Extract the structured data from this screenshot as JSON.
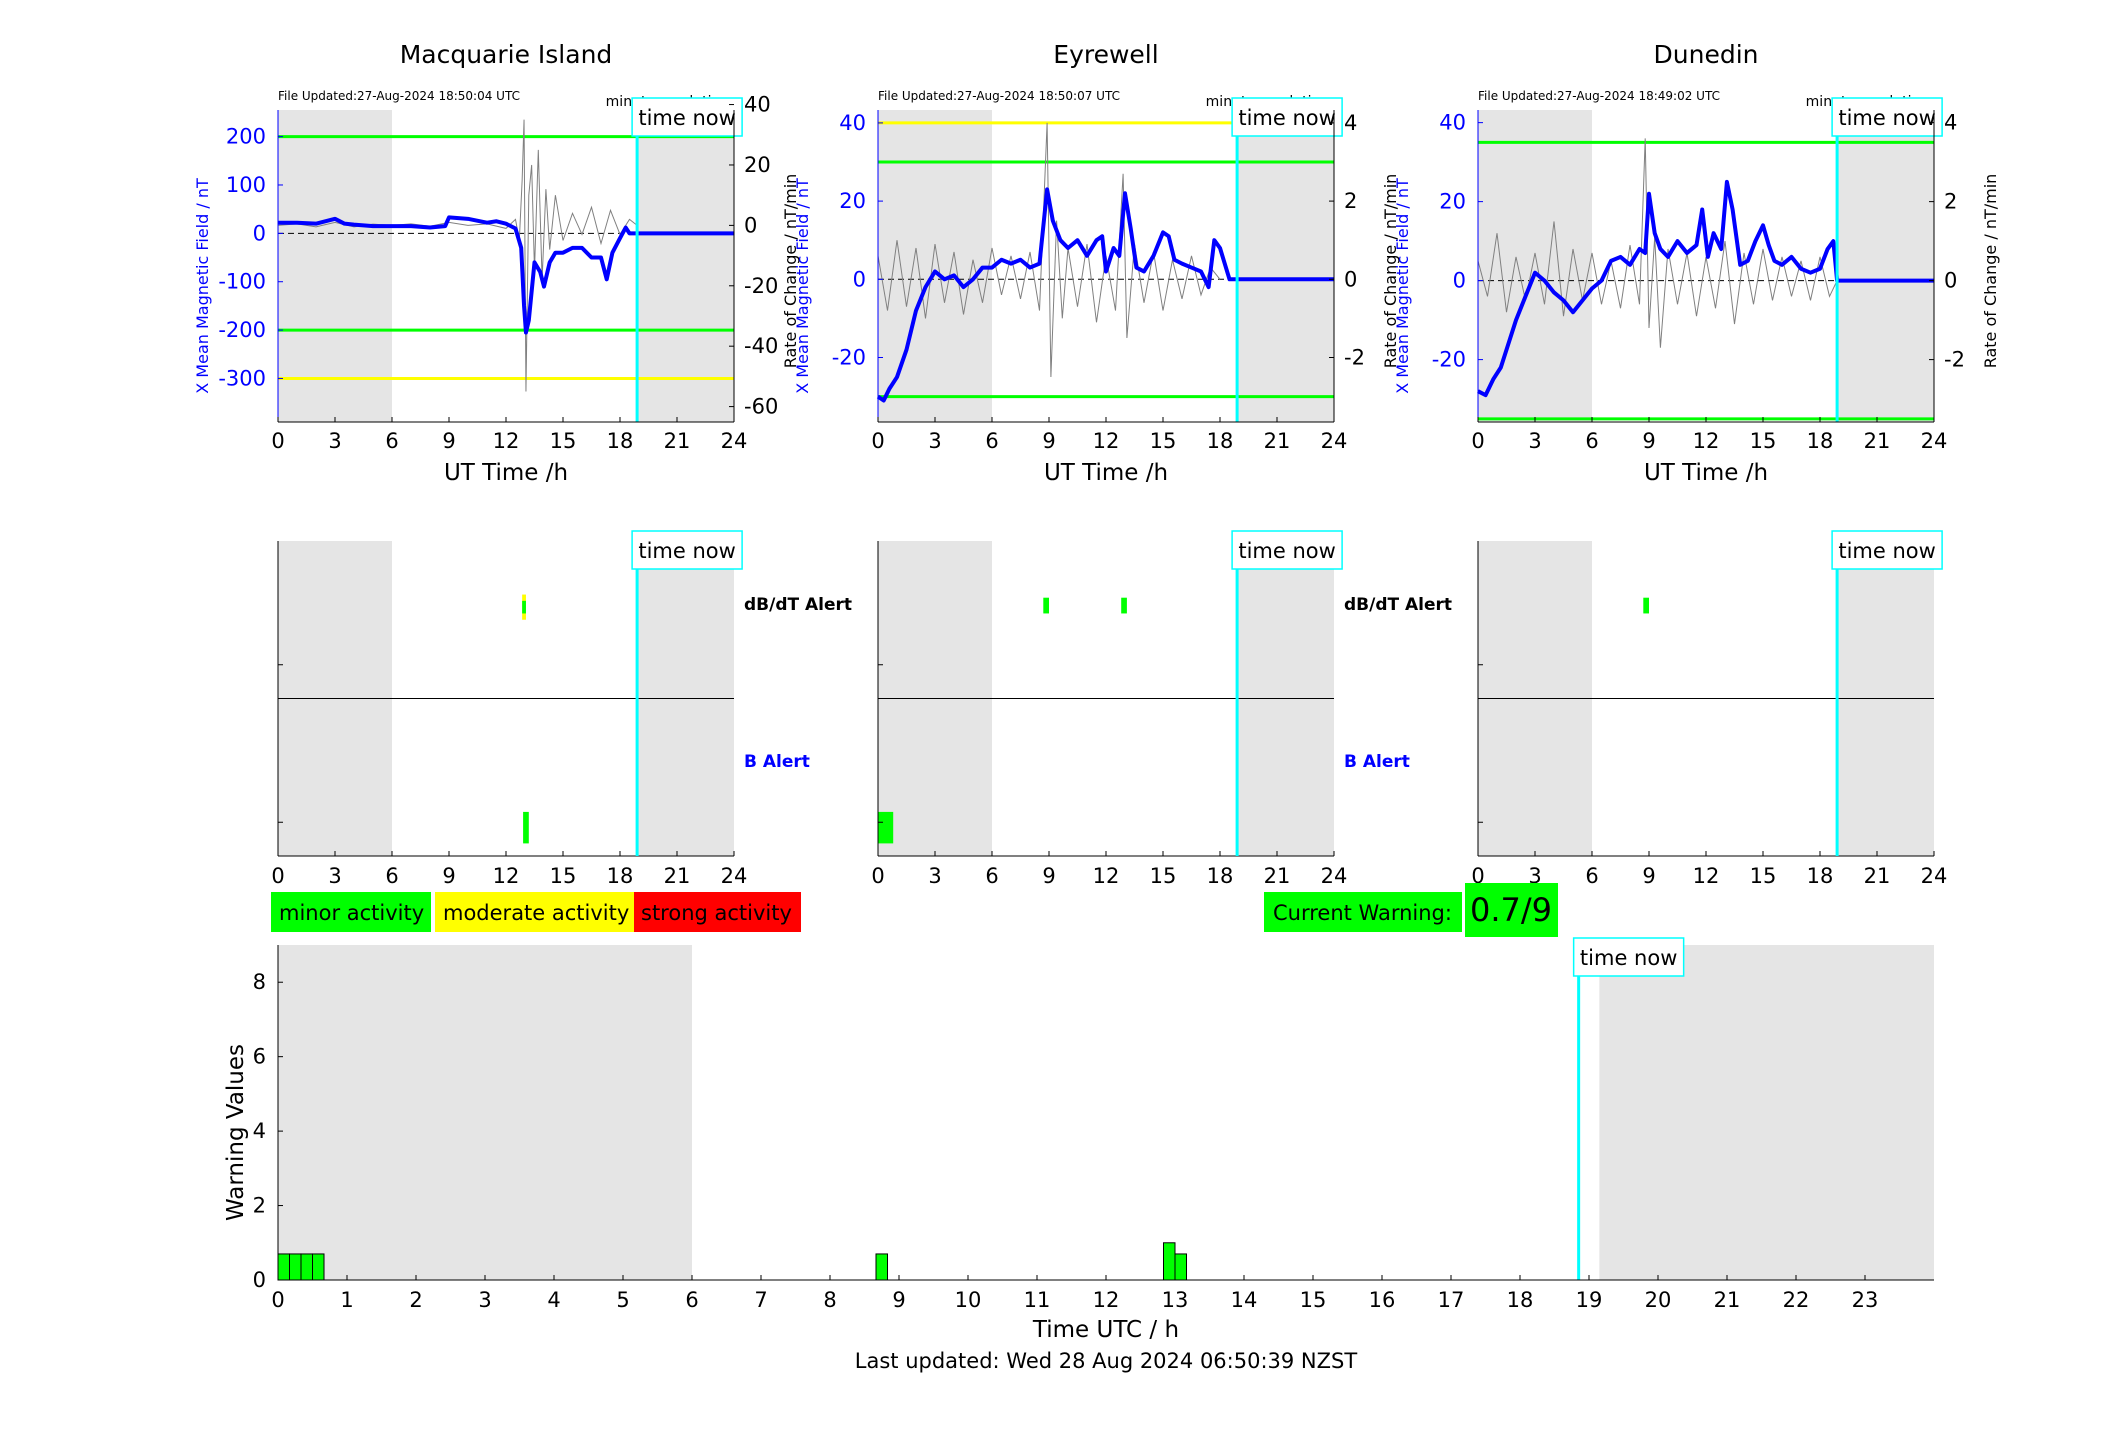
{
  "colors": {
    "field": "#0000ff",
    "rate": "#808080",
    "green": "#00ff00",
    "yellow": "#ffff00",
    "red": "#ff0000",
    "cyan": "#00ffff",
    "night": "#e5e5e5"
  },
  "labels": {
    "time_now": "time now",
    "xlabel_top": "UT Time /h",
    "ylabel_left": "X Mean Magnetic Field / nT",
    "ylabel_right": "Rate of Change / nT/min",
    "minute_resolution": "minute resolution",
    "dbdt_alert": "dB/dT Alert",
    "b_alert": "B Alert"
  },
  "legend": {
    "minor": "minor activity",
    "moderate": "moderate activity",
    "strong": "strong activity"
  },
  "current_warning": {
    "label": "Current Warning:",
    "value": "0.7/9"
  },
  "footer": "Last updated: Wed 28 Aug 2024 06:50:39 NZST",
  "chart_data": [
    {
      "type": "line",
      "title": "Macquarie Island",
      "file_updated": "File Updated:27-Aug-2024 18:50:04 UTC",
      "xlabel": "UT Time /h",
      "ylabel": "X Mean Magnetic Field / nT",
      "ylabel_right": "Rate of Change / nT/min",
      "xlim": [
        0,
        24
      ],
      "xticks": [
        0,
        3,
        6,
        9,
        12,
        15,
        18,
        21,
        24
      ],
      "ylim": [
        -390,
        255
      ],
      "yticks": [
        200,
        100,
        0,
        -100,
        -200,
        -300
      ],
      "ylim_right": [
        -65.1,
        38.2
      ],
      "yticks_right": [
        40,
        20,
        0,
        -20,
        -40,
        -60
      ],
      "night_shading": [
        [
          0,
          6
        ],
        [
          18.9,
          24
        ]
      ],
      "time_now": 18.9,
      "thresholds": [
        {
          "value": 200,
          "color": "green"
        },
        {
          "value": -200,
          "color": "green"
        },
        {
          "value": -300,
          "color": "yellow"
        }
      ],
      "series": [
        {
          "role": "field",
          "x": [
            0,
            1,
            2,
            3,
            3.5,
            4,
            5,
            6,
            7,
            8,
            8.8,
            9,
            10,
            11,
            11.5,
            12,
            12.5,
            12.8,
            12.95,
            13.05,
            13.2,
            13.5,
            13.8,
            14,
            14.3,
            14.6,
            15,
            15.5,
            16,
            16.5,
            17,
            17.3,
            17.6,
            18,
            18.3,
            18.5,
            18.9,
            24
          ],
          "y": [
            22,
            22,
            20,
            30,
            20,
            18,
            15,
            15,
            15,
            12,
            15,
            33,
            30,
            22,
            25,
            20,
            10,
            -30,
            -150,
            -205,
            -180,
            -60,
            -80,
            -110,
            -60,
            -40,
            -40,
            -30,
            -30,
            -50,
            -50,
            -95,
            -40,
            -10,
            12,
            0,
            0,
            0
          ]
        },
        {
          "role": "rate",
          "x": [
            0,
            1,
            2,
            3,
            4,
            5,
            6,
            7,
            8,
            9,
            10,
            11,
            12,
            12.5,
            12.7,
            12.85,
            12.95,
            13.05,
            13.2,
            13.35,
            13.5,
            13.7,
            13.9,
            14.1,
            14.3,
            14.6,
            15,
            15.5,
            16,
            16.5,
            17,
            17.5,
            18,
            18.5,
            18.9
          ],
          "y": [
            0,
            0.5,
            -0.5,
            1,
            -0.5,
            0.4,
            0,
            0.5,
            -0.3,
            1,
            0,
            0.5,
            -1,
            2,
            -5,
            15,
            35,
            -55,
            10,
            20,
            -15,
            25,
            -18,
            12,
            -8,
            10,
            -5,
            4,
            -3,
            6,
            -6,
            5,
            -3,
            2,
            0
          ]
        }
      ],
      "alerts": {
        "dbdt": [
          {
            "start": 12.85,
            "end": 13.05,
            "color": "yellow",
            "lo": 0.5,
            "hi": 0.66
          },
          {
            "start": 12.85,
            "end": 13.05,
            "color": "green",
            "lo": 0.54,
            "hi": 0.62
          }
        ],
        "b": [
          {
            "start": 12.9,
            "end": 13.2,
            "color": "green",
            "lo": 0.04,
            "hi": 0.14
          }
        ]
      }
    },
    {
      "type": "line",
      "title": "Eyrewell",
      "file_updated": "File Updated:27-Aug-2024 18:50:07 UTC",
      "xlabel": "UT Time /h",
      "ylabel": "X Mean Magnetic Field / nT",
      "ylabel_right": "Rate of Change / nT/min",
      "xlim": [
        0,
        24
      ],
      "xticks": [
        0,
        3,
        6,
        9,
        12,
        15,
        18,
        21,
        24
      ],
      "ylim": [
        -36.5,
        43.3
      ],
      "yticks": [
        40,
        20,
        0,
        -20
      ],
      "ylim_right": [
        -3.65,
        4.33
      ],
      "yticks_right": [
        4,
        2,
        0,
        -2
      ],
      "night_shading": [
        [
          0,
          6
        ],
        [
          18.9,
          24
        ]
      ],
      "time_now": 18.9,
      "thresholds": [
        {
          "value": 40,
          "color": "yellow"
        },
        {
          "value": 30,
          "color": "green"
        },
        {
          "value": -30,
          "color": "green"
        }
      ],
      "series": [
        {
          "role": "field",
          "x": [
            0,
            0.3,
            0.6,
            1,
            1.5,
            2,
            2.5,
            3,
            3.5,
            4,
            4.5,
            5,
            5.5,
            6,
            6.5,
            7,
            7.5,
            8,
            8.5,
            8.9,
            9.2,
            9.6,
            10,
            10.5,
            11,
            11.5,
            11.8,
            12,
            12.4,
            12.7,
            13,
            13.3,
            13.6,
            14,
            14.5,
            15,
            15.3,
            15.6,
            16,
            16.5,
            17,
            17.4,
            17.7,
            18,
            18.5,
            18.9,
            24
          ],
          "y": [
            -30,
            -31,
            -28,
            -25,
            -18,
            -8,
            -2,
            2,
            0,
            1,
            -2,
            0,
            3,
            3,
            5,
            4,
            5,
            3,
            4,
            23,
            15,
            10,
            8,
            10,
            6,
            10,
            11,
            2,
            8,
            6,
            22,
            13,
            3,
            2,
            6,
            12,
            11,
            5,
            4,
            3,
            2,
            -2,
            10,
            8,
            0,
            0,
            0
          ]
        },
        {
          "role": "rate",
          "x": [
            0,
            0.5,
            1,
            1.5,
            2,
            2.5,
            3,
            3.5,
            4,
            4.5,
            5,
            5.5,
            6,
            6.5,
            7,
            7.5,
            8,
            8.5,
            8.9,
            9.1,
            9.4,
            9.7,
            10,
            10.5,
            11,
            11.5,
            12,
            12.5,
            12.9,
            13.1,
            13.5,
            14,
            14.5,
            15,
            15.5,
            16,
            16.5,
            17,
            17.5,
            18
          ],
          "y": [
            0.6,
            -0.8,
            1,
            -0.7,
            0.8,
            -1,
            0.9,
            -0.6,
            0.7,
            -0.9,
            0.5,
            -0.6,
            0.8,
            -0.4,
            0.6,
            -0.5,
            0.7,
            -0.8,
            4,
            -2.5,
            1.5,
            -1,
            0.8,
            -0.7,
            0.9,
            -1.1,
            0.6,
            -0.8,
            2.7,
            -1.5,
            0.9,
            -0.6,
            0.7,
            -0.8,
            0.5,
            -0.5,
            0.6,
            -0.4,
            0.3,
            0
          ]
        }
      ],
      "alerts": {
        "dbdt": [
          {
            "start": 8.7,
            "end": 9.0,
            "color": "green",
            "lo": 0.54,
            "hi": 0.64
          },
          {
            "start": 12.8,
            "end": 13.1,
            "color": "green",
            "lo": 0.54,
            "hi": 0.64
          }
        ],
        "b": [
          {
            "start": 0,
            "end": 0.8,
            "color": "green",
            "lo": 0.04,
            "hi": 0.14
          }
        ]
      }
    },
    {
      "type": "line",
      "title": "Dunedin",
      "file_updated": "File Updated:27-Aug-2024 18:49:02 UTC",
      "xlabel": "UT Time /h",
      "ylabel": "X Mean Magnetic Field / nT",
      "ylabel_right": "Rate of Change / nT/min",
      "xlim": [
        0,
        24
      ],
      "xticks": [
        0,
        3,
        6,
        9,
        12,
        15,
        18,
        21,
        24
      ],
      "ylim": [
        -35.8,
        43.2
      ],
      "yticks": [
        40,
        20,
        0,
        -20
      ],
      "ylim_right": [
        -3.58,
        4.32
      ],
      "yticks_right": [
        4,
        2,
        0,
        -2
      ],
      "night_shading": [
        [
          0,
          6
        ],
        [
          18.9,
          24
        ]
      ],
      "time_now": 18.9,
      "thresholds": [
        {
          "value": 35,
          "color": "green"
        },
        {
          "value": -35,
          "color": "green"
        }
      ],
      "series": [
        {
          "role": "field",
          "x": [
            0,
            0.4,
            0.8,
            1.2,
            1.6,
            2,
            2.5,
            3,
            3.5,
            4,
            4.5,
            5,
            5.5,
            6,
            6.5,
            7,
            7.5,
            8,
            8.5,
            8.8,
            9,
            9.3,
            9.6,
            10,
            10.5,
            11,
            11.5,
            11.8,
            12.1,
            12.4,
            12.8,
            13.1,
            13.4,
            13.8,
            14.2,
            14.6,
            15,
            15.3,
            15.6,
            16,
            16.5,
            17,
            17.5,
            18,
            18.4,
            18.7,
            18.9,
            24
          ],
          "y": [
            -28,
            -29,
            -25,
            -22,
            -16,
            -10,
            -4,
            2,
            0,
            -3,
            -5,
            -8,
            -5,
            -2,
            0,
            5,
            6,
            4,
            8,
            7,
            22,
            12,
            8,
            6,
            10,
            7,
            9,
            18,
            6,
            12,
            8,
            25,
            18,
            4,
            5,
            10,
            14,
            9,
            5,
            4,
            6,
            3,
            2,
            3,
            8,
            10,
            0,
            0
          ]
        },
        {
          "role": "rate",
          "x": [
            0,
            0.5,
            1,
            1.5,
            2,
            2.5,
            3,
            3.5,
            4,
            4.5,
            5,
            5.5,
            6,
            6.5,
            7,
            7.5,
            8,
            8.5,
            8.8,
            9,
            9.3,
            9.6,
            10,
            10.5,
            11,
            11.5,
            12,
            12.5,
            13,
            13.5,
            14,
            14.5,
            15,
            15.5,
            16,
            16.5,
            17,
            17.5,
            18,
            18.5,
            18.9
          ],
          "y": [
            0.5,
            -0.4,
            1.2,
            -0.8,
            0.6,
            -0.5,
            0.7,
            -0.6,
            1.5,
            -0.9,
            0.8,
            -0.5,
            0.7,
            -0.6,
            0.5,
            -0.7,
            0.9,
            -0.6,
            3.6,
            -1.2,
            1.1,
            -1.7,
            0.8,
            -0.6,
            0.7,
            -0.9,
            0.6,
            -0.7,
            1.0,
            -1.1,
            0.7,
            -0.6,
            0.8,
            -0.5,
            0.6,
            -0.4,
            0.5,
            -0.5,
            0.6,
            -0.4,
            0
          ]
        }
      ],
      "alerts": {
        "dbdt": [
          {
            "start": 8.7,
            "end": 9.0,
            "color": "green",
            "lo": 0.54,
            "hi": 0.64
          }
        ],
        "b": []
      }
    },
    {
      "type": "bar",
      "title": "",
      "xlabel": "Time UTC / h",
      "ylabel": "Warning Values",
      "xlim": [
        0,
        24
      ],
      "xticks": [
        0,
        1,
        2,
        3,
        4,
        5,
        6,
        7,
        8,
        9,
        10,
        11,
        12,
        13,
        14,
        15,
        16,
        17,
        18,
        19,
        20,
        21,
        22,
        23
      ],
      "ylim": [
        0,
        9
      ],
      "yticks": [
        0,
        2,
        4,
        6,
        8
      ],
      "night_shading": [
        [
          0,
          6
        ],
        [
          19.15,
          24
        ]
      ],
      "time_now": 18.85,
      "bar_width": 0.1667,
      "bars": [
        {
          "start": 0.0,
          "value": 0.7
        },
        {
          "start": 0.1667,
          "value": 0.7
        },
        {
          "start": 0.3333,
          "value": 0.7
        },
        {
          "start": 0.5,
          "value": 0.7
        },
        {
          "start": 8.6667,
          "value": 0.7
        },
        {
          "start": 12.8333,
          "value": 1.0
        },
        {
          "start": 13.0,
          "value": 0.7
        }
      ]
    }
  ]
}
